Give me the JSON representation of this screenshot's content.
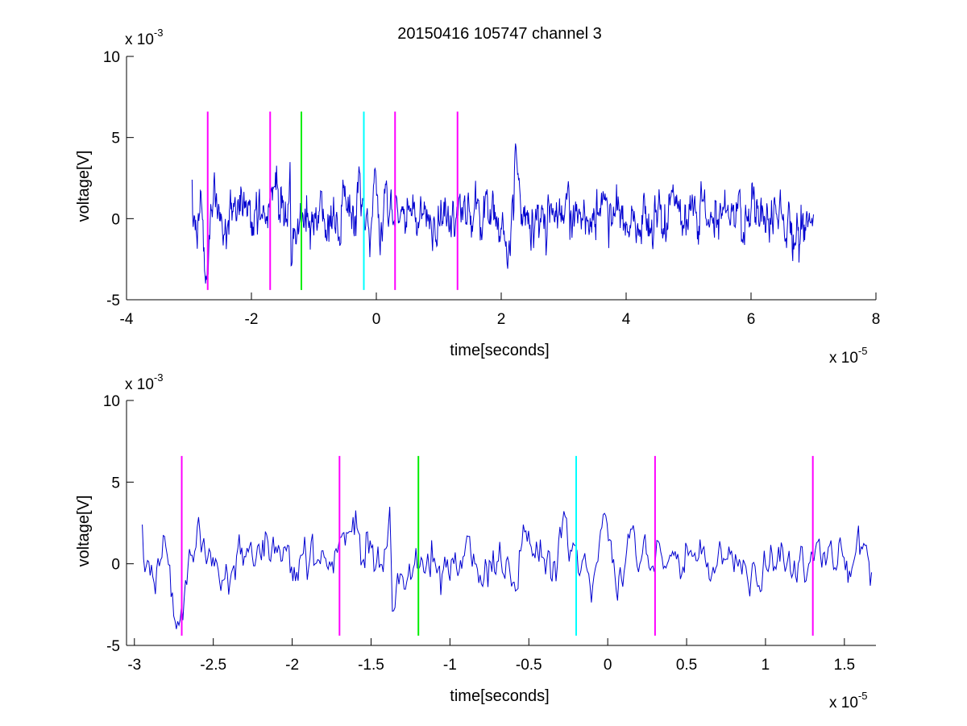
{
  "title": "20150416 105747 channel 3",
  "colors": {
    "signal": "#0000d0",
    "magenta": "#ff00ff",
    "green": "#00ee00",
    "cyan": "#00ffff",
    "axis": "#000000"
  },
  "chart_data": [
    {
      "type": "line",
      "title": "20150416 105747 channel 3",
      "xlabel": "time[seconds]",
      "ylabel": "voltage[V]",
      "x_multiplier": "x 10",
      "x_exponent": "-5",
      "y_multiplier": "x 10",
      "y_exponent": "-3",
      "xlim": [
        -4,
        8
      ],
      "ylim": [
        -5,
        10
      ],
      "xticks": [
        -4,
        -2,
        0,
        2,
        4,
        6,
        8
      ],
      "xtick_labels": [
        "-4",
        "-2",
        "0",
        "2",
        "4",
        "6",
        "8"
      ],
      "yticks": [
        -5,
        0,
        5,
        10
      ],
      "ytick_labels": [
        "-5",
        "0",
        "5",
        "10"
      ],
      "signal_range": [
        -2.95,
        7.0
      ],
      "markers": [
        {
          "x": -2.7,
          "color": "magenta",
          "ymin": -4.4,
          "ymax": 6.6
        },
        {
          "x": -1.7,
          "color": "magenta",
          "ymin": -4.4,
          "ymax": 6.6
        },
        {
          "x": -1.2,
          "color": "green",
          "ymin": -4.4,
          "ymax": 6.6
        },
        {
          "x": -0.2,
          "color": "cyan",
          "ymin": -4.4,
          "ymax": 6.6
        },
        {
          "x": 0.3,
          "color": "magenta",
          "ymin": -4.4,
          "ymax": 6.6
        },
        {
          "x": 1.3,
          "color": "magenta",
          "ymin": -4.4,
          "ymax": 6.6
        }
      ]
    },
    {
      "type": "line",
      "xlabel": "time[seconds]",
      "ylabel": "voltage[V]",
      "x_multiplier": "x 10",
      "x_exponent": "-5",
      "y_multiplier": "x 10",
      "y_exponent": "-3",
      "xlim": [
        -3.05,
        1.7
      ],
      "ylim": [
        -5,
        10
      ],
      "xticks": [
        -3,
        -2.5,
        -2,
        -1.5,
        -1,
        -0.5,
        0,
        0.5,
        1,
        1.5
      ],
      "xtick_labels": [
        "-3",
        "-2.5",
        "-2",
        "-1.5",
        "-1",
        "-0.5",
        "0",
        "0.5",
        "1",
        "1.5"
      ],
      "yticks": [
        -5,
        0,
        5,
        10
      ],
      "ytick_labels": [
        "-5",
        "0",
        "5",
        "10"
      ],
      "signal_range": [
        -2.95,
        1.68
      ],
      "markers": [
        {
          "x": -2.7,
          "color": "magenta",
          "ymin": -4.4,
          "ymax": 6.6
        },
        {
          "x": -1.7,
          "color": "magenta",
          "ymin": -4.4,
          "ymax": 6.6
        },
        {
          "x": -1.2,
          "color": "green",
          "ymin": -4.4,
          "ymax": 6.6
        },
        {
          "x": -0.2,
          "color": "cyan",
          "ymin": -4.4,
          "ymax": 6.6
        },
        {
          "x": 0.3,
          "color": "magenta",
          "ymin": -4.4,
          "ymax": 6.6
        },
        {
          "x": 1.3,
          "color": "magenta",
          "ymin": -4.4,
          "ymax": 6.6
        }
      ]
    }
  ]
}
